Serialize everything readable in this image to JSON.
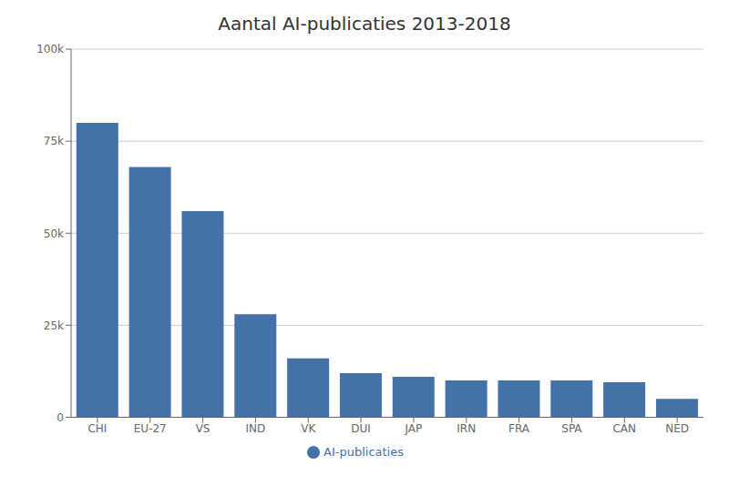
{
  "chart_data": {
    "type": "bar",
    "title": "Aantal AI-publicaties 2013-2018",
    "categories": [
      "CHI",
      "EU-27",
      "VS",
      "IND",
      "VK",
      "DUI",
      "JAP",
      "IRN",
      "FRA",
      "SPA",
      "CAN",
      "NED"
    ],
    "series": [
      {
        "name": "AI-publicaties",
        "color": "#4472a8",
        "values": [
          80000,
          68000,
          56000,
          28000,
          16000,
          12000,
          11000,
          10000,
          10000,
          10000,
          9500,
          5000
        ]
      }
    ],
    "ylim": [
      0,
      100000
    ],
    "yticks": [
      0,
      {
        "value": 25000,
        "label": "25k"
      },
      {
        "value": 50000,
        "label": "50k"
      },
      {
        "value": 75000,
        "label": "75k"
      },
      {
        "value": 100000,
        "label": "100k"
      }
    ],
    "grid": true,
    "legend": "bottom"
  }
}
